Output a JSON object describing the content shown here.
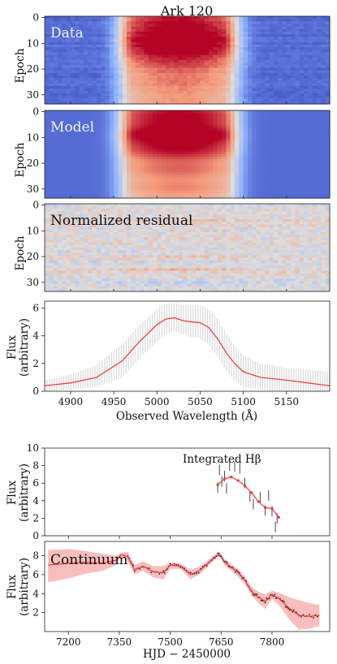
{
  "title": "Ark 120",
  "chart_data": [
    {
      "type": "heatmap",
      "panel": "data",
      "label": "Data",
      "ylabel": "Epoch",
      "ylim": [
        33,
        0
      ],
      "yticks": [
        0,
        10,
        20,
        30
      ],
      "colormap": [
        "#3b4cc0",
        "#8db0fe",
        "#dddddd",
        "#f49a7b",
        "#b40426"
      ],
      "profile_center": 5025,
      "profile_width": 100
    },
    {
      "type": "heatmap",
      "panel": "model",
      "label": "Model",
      "ylabel": "Epoch",
      "ylim": [
        33,
        0
      ],
      "yticks": [
        0,
        10,
        20,
        30
      ]
    },
    {
      "type": "heatmap",
      "panel": "residual",
      "label": "Normalized residual",
      "ylabel": "Epoch",
      "ylim": [
        33,
        0
      ],
      "yticks": [
        0,
        10,
        20,
        30
      ],
      "row_bias": {
        "5": 0.2,
        "6": 0.3,
        "10": 0.4,
        "13": 0.35,
        "20": 0.5,
        "25": 0.9,
        "30": -0.3,
        "31": -0.4
      }
    },
    {
      "type": "line",
      "panel": "profile",
      "xlabel": "Observed Wavelength (Å)",
      "ylabel": "Flux",
      "ylabel2": "(arbitrary)",
      "xlim": [
        4870,
        5200
      ],
      "ylim": [
        0,
        6.5
      ],
      "xticks": [
        4900,
        4950,
        5000,
        5050,
        5100,
        5150
      ],
      "yticks": [
        0,
        2,
        4,
        6
      ],
      "x": [
        4870,
        4900,
        4930,
        4960,
        4980,
        5000,
        5010,
        5020,
        5030,
        5040,
        5050,
        5060,
        5070,
        5080,
        5090,
        5100,
        5120,
        5150,
        5200
      ],
      "y": [
        0.4,
        0.6,
        1.0,
        2.2,
        3.6,
        4.8,
        5.2,
        5.3,
        5.1,
        5.0,
        4.95,
        4.6,
        3.8,
        2.8,
        2.0,
        1.4,
        1.0,
        0.8,
        0.4
      ],
      "band_upper": [
        0.8,
        1.2,
        1.9,
        3.4,
        4.8,
        5.9,
        6.3,
        6.4,
        6.2,
        6.2,
        6.2,
        5.9,
        5.2,
        4.2,
        3.3,
        2.6,
        2.0,
        1.7,
        1.4
      ],
      "band_lower": [
        0.0,
        0.1,
        0.3,
        1.0,
        2.4,
        3.6,
        4.1,
        4.3,
        4.1,
        3.9,
        3.8,
        3.4,
        2.5,
        1.5,
        0.8,
        0.3,
        0.1,
        0.0,
        0.0
      ],
      "line_color": "#e8383b",
      "band_color": "#d9d9d9"
    },
    {
      "type": "line",
      "panel": "hbeta",
      "label": "Integrated Hβ",
      "ylabel": "Flux",
      "ylabel2": "(arbitrary)",
      "xlim": [
        7130,
        7970
      ],
      "ylim": [
        0,
        10
      ],
      "yticks": [
        0,
        2,
        4,
        6,
        8,
        10
      ],
      "x": [
        7640,
        7660,
        7680,
        7700,
        7720,
        7740,
        7760,
        7780,
        7800,
        7820
      ],
      "y": [
        5.8,
        6.5,
        6.7,
        6.3,
        5.7,
        4.9,
        3.9,
        3.2,
        3.1,
        2.1
      ],
      "obs_x": [
        7640,
        7645,
        7652,
        7660,
        7666,
        7675,
        7690,
        7705,
        7720,
        7735,
        7745,
        7765,
        7780,
        7790,
        7800,
        7810,
        7815
      ],
      "obs_y": [
        5.5,
        7.5,
        6.2,
        6.8,
        5.4,
        8.0,
        7.9,
        7.7,
        6.0,
        4.5,
        3.6,
        4.4,
        2.9,
        4.6,
        2.8,
        1.0,
        2.0
      ],
      "line_color": "#e8383b"
    },
    {
      "type": "line",
      "panel": "continuum",
      "label": "Continuum",
      "xlabel": "HJD − 2450000",
      "ylabel": "Flux",
      "ylabel2": "(arbitrary)",
      "xlim": [
        7130,
        7970
      ],
      "ylim": [
        0,
        9.5
      ],
      "xticks": [
        7200,
        7350,
        7500,
        7650,
        7800
      ],
      "yticks": [
        2,
        4,
        6,
        8
      ],
      "x": [
        7140,
        7200,
        7250,
        7300,
        7340,
        7355,
        7375,
        7395,
        7420,
        7450,
        7480,
        7500,
        7530,
        7560,
        7590,
        7620,
        7640,
        7650,
        7660,
        7680,
        7700,
        7720,
        7740,
        7760,
        7780,
        7800,
        7820,
        7840,
        7860,
        7880,
        7910,
        7940
      ],
      "y": [
        7.0,
        7.2,
        7.3,
        7.2,
        7.5,
        8.1,
        7.9,
        6.5,
        6.9,
        6.3,
        6.2,
        7.0,
        6.9,
        6.0,
        6.5,
        7.5,
        8.1,
        8.0,
        7.3,
        6.8,
        6.2,
        5.4,
        4.2,
        3.6,
        3.2,
        3.9,
        3.5,
        2.8,
        2.2,
        1.7,
        1.6,
        1.7
      ],
      "band_upper": [
        8.6,
        8.7,
        8.5,
        8.2,
        8.0,
        8.3,
        8.4,
        7.0,
        7.4,
        6.9,
        6.9,
        7.3,
        7.2,
        6.5,
        6.9,
        7.8,
        8.3,
        8.2,
        7.6,
        7.1,
        6.6,
        5.8,
        4.7,
        4.2,
        3.9,
        4.3,
        4.1,
        3.8,
        3.5,
        3.3,
        3.0,
        2.8
      ],
      "band_lower": [
        5.2,
        5.6,
        6.1,
        6.4,
        7.0,
        7.9,
        7.4,
        6.0,
        6.4,
        5.7,
        5.5,
        6.6,
        6.6,
        5.5,
        6.1,
        7.2,
        7.9,
        7.8,
        7.0,
        6.4,
        5.8,
        5.0,
        3.8,
        3.0,
        2.4,
        3.4,
        2.8,
        1.8,
        0.9,
        0.2,
        0.3,
        0.6
      ],
      "line_color": "#e8383b",
      "band_color": "#f7b3b3"
    }
  ]
}
